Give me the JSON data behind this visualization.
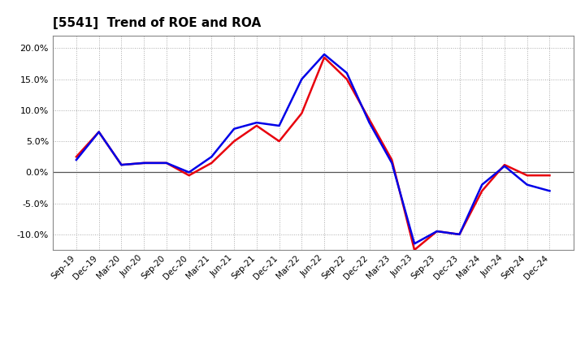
{
  "title": "[5541]  Trend of ROE and ROA",
  "labels": [
    "Sep-19",
    "Dec-19",
    "Mar-20",
    "Jun-20",
    "Sep-20",
    "Dec-20",
    "Mar-21",
    "Jun-21",
    "Sep-21",
    "Dec-21",
    "Mar-22",
    "Jun-22",
    "Sep-22",
    "Dec-22",
    "Mar-23",
    "Jun-23",
    "Sep-23",
    "Dec-23",
    "Mar-24",
    "Jun-24",
    "Sep-24",
    "Dec-24"
  ],
  "ROE": [
    2.5,
    6.5,
    1.2,
    1.5,
    1.5,
    -0.5,
    1.5,
    5.0,
    7.5,
    5.0,
    9.5,
    18.5,
    15.0,
    8.5,
    2.0,
    -12.5,
    -9.5,
    -10.0,
    -3.0,
    1.2,
    -0.5,
    -0.5
  ],
  "ROA": [
    2.0,
    6.5,
    1.2,
    1.5,
    1.5,
    0.0,
    2.5,
    7.0,
    8.0,
    7.5,
    15.0,
    19.0,
    16.0,
    8.0,
    1.5,
    -11.5,
    -9.5,
    -10.0,
    -2.0,
    1.0,
    -2.0,
    -3.0
  ],
  "roe_color": "#e8000d",
  "roa_color": "#0000e8",
  "ylim": [
    -12.5,
    22.0
  ],
  "yticks": [
    -10.0,
    -5.0,
    0.0,
    5.0,
    10.0,
    15.0,
    20.0
  ],
  "background_color": "#ffffff",
  "grid_color": "#aaaaaa",
  "line_width": 1.8
}
